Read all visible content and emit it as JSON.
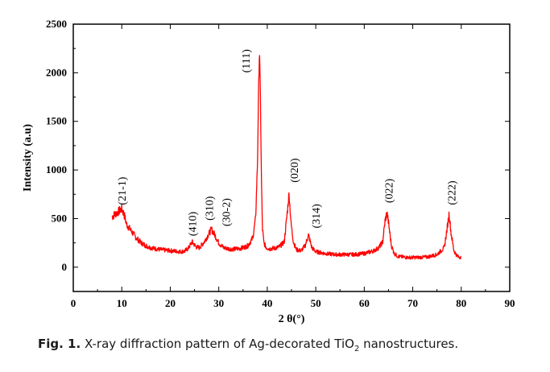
{
  "chart_data": {
    "type": "line",
    "xlabel": "2 θ(°)",
    "ylabel": "Intensity (a.u)",
    "xlim": [
      0,
      90
    ],
    "ylim": [
      -250,
      2500
    ],
    "x_ticks": [
      0,
      10,
      20,
      30,
      40,
      50,
      60,
      70,
      80,
      90
    ],
    "y_ticks": [
      0,
      500,
      1000,
      1500,
      2000,
      2500
    ],
    "line_color": "#ff0000",
    "grid": false,
    "series": [
      {
        "x": [
          8,
          9,
          10,
          10.5,
          11,
          12,
          13,
          14,
          15,
          16,
          17,
          18,
          19,
          20,
          21,
          22,
          23,
          23.8,
          24.5,
          25.3,
          26,
          27,
          27.8,
          28.5,
          29.2,
          30,
          31,
          32,
          33,
          34,
          35,
          36,
          37,
          37.6,
          38.0,
          38.2,
          38.4,
          38.6,
          38.8,
          39.0,
          39.3,
          39.8,
          40.5,
          41.5,
          42.5,
          43.5,
          44.0,
          44.5,
          44.9,
          45.4,
          46,
          47,
          47.8,
          48.5,
          49.2,
          50,
          52,
          54,
          56,
          58,
          60,
          62,
          63,
          63.8,
          64.3,
          64.7,
          65.1,
          65.6,
          66.2,
          67,
          69,
          71,
          73,
          75,
          76.5,
          77.1,
          77.5,
          77.9,
          78.5,
          79.2,
          80
        ],
        "y": [
          520,
          560,
          600,
          540,
          440,
          370,
          300,
          250,
          220,
          200,
          190,
          180,
          175,
          170,
          165,
          160,
          165,
          200,
          260,
          210,
          200,
          260,
          330,
          390,
          330,
          250,
          200,
          190,
          185,
          190,
          200,
          220,
          300,
          500,
          1100,
          1800,
          2250,
          1700,
          900,
          400,
          250,
          200,
          190,
          195,
          210,
          260,
          500,
          760,
          450,
          260,
          180,
          170,
          220,
          330,
          200,
          160,
          140,
          130,
          130,
          130,
          140,
          170,
          200,
          260,
          480,
          560,
          420,
          220,
          140,
          110,
          100,
          100,
          105,
          130,
          200,
          400,
          550,
          350,
          170,
          110,
          100
        ]
      }
    ],
    "annotations": [
      {
        "text": "(21-1)",
        "x": 10.0,
        "y": 640
      },
      {
        "text": "(410)",
        "x": 24.5,
        "y": 320
      },
      {
        "text": "(310)",
        "x": 28.0,
        "y": 480
      },
      {
        "text": "(30-2)",
        "x": 31.5,
        "y": 420
      },
      {
        "text": "(111)",
        "x": 35.5,
        "y": 2000
      },
      {
        "text": "(020)",
        "x": 45.5,
        "y": 870
      },
      {
        "text": "(314)",
        "x": 50.0,
        "y": 400
      },
      {
        "text": "(022)",
        "x": 65.0,
        "y": 660
      },
      {
        "text": "(222)",
        "x": 78.0,
        "y": 640
      }
    ]
  },
  "caption": {
    "fig_label": "Fig. 1.",
    "text_before_sub": " X-ray diffraction pattern of Ag-decorated TiO",
    "subscript": "2",
    "text_after_sub": " nanostructures."
  }
}
